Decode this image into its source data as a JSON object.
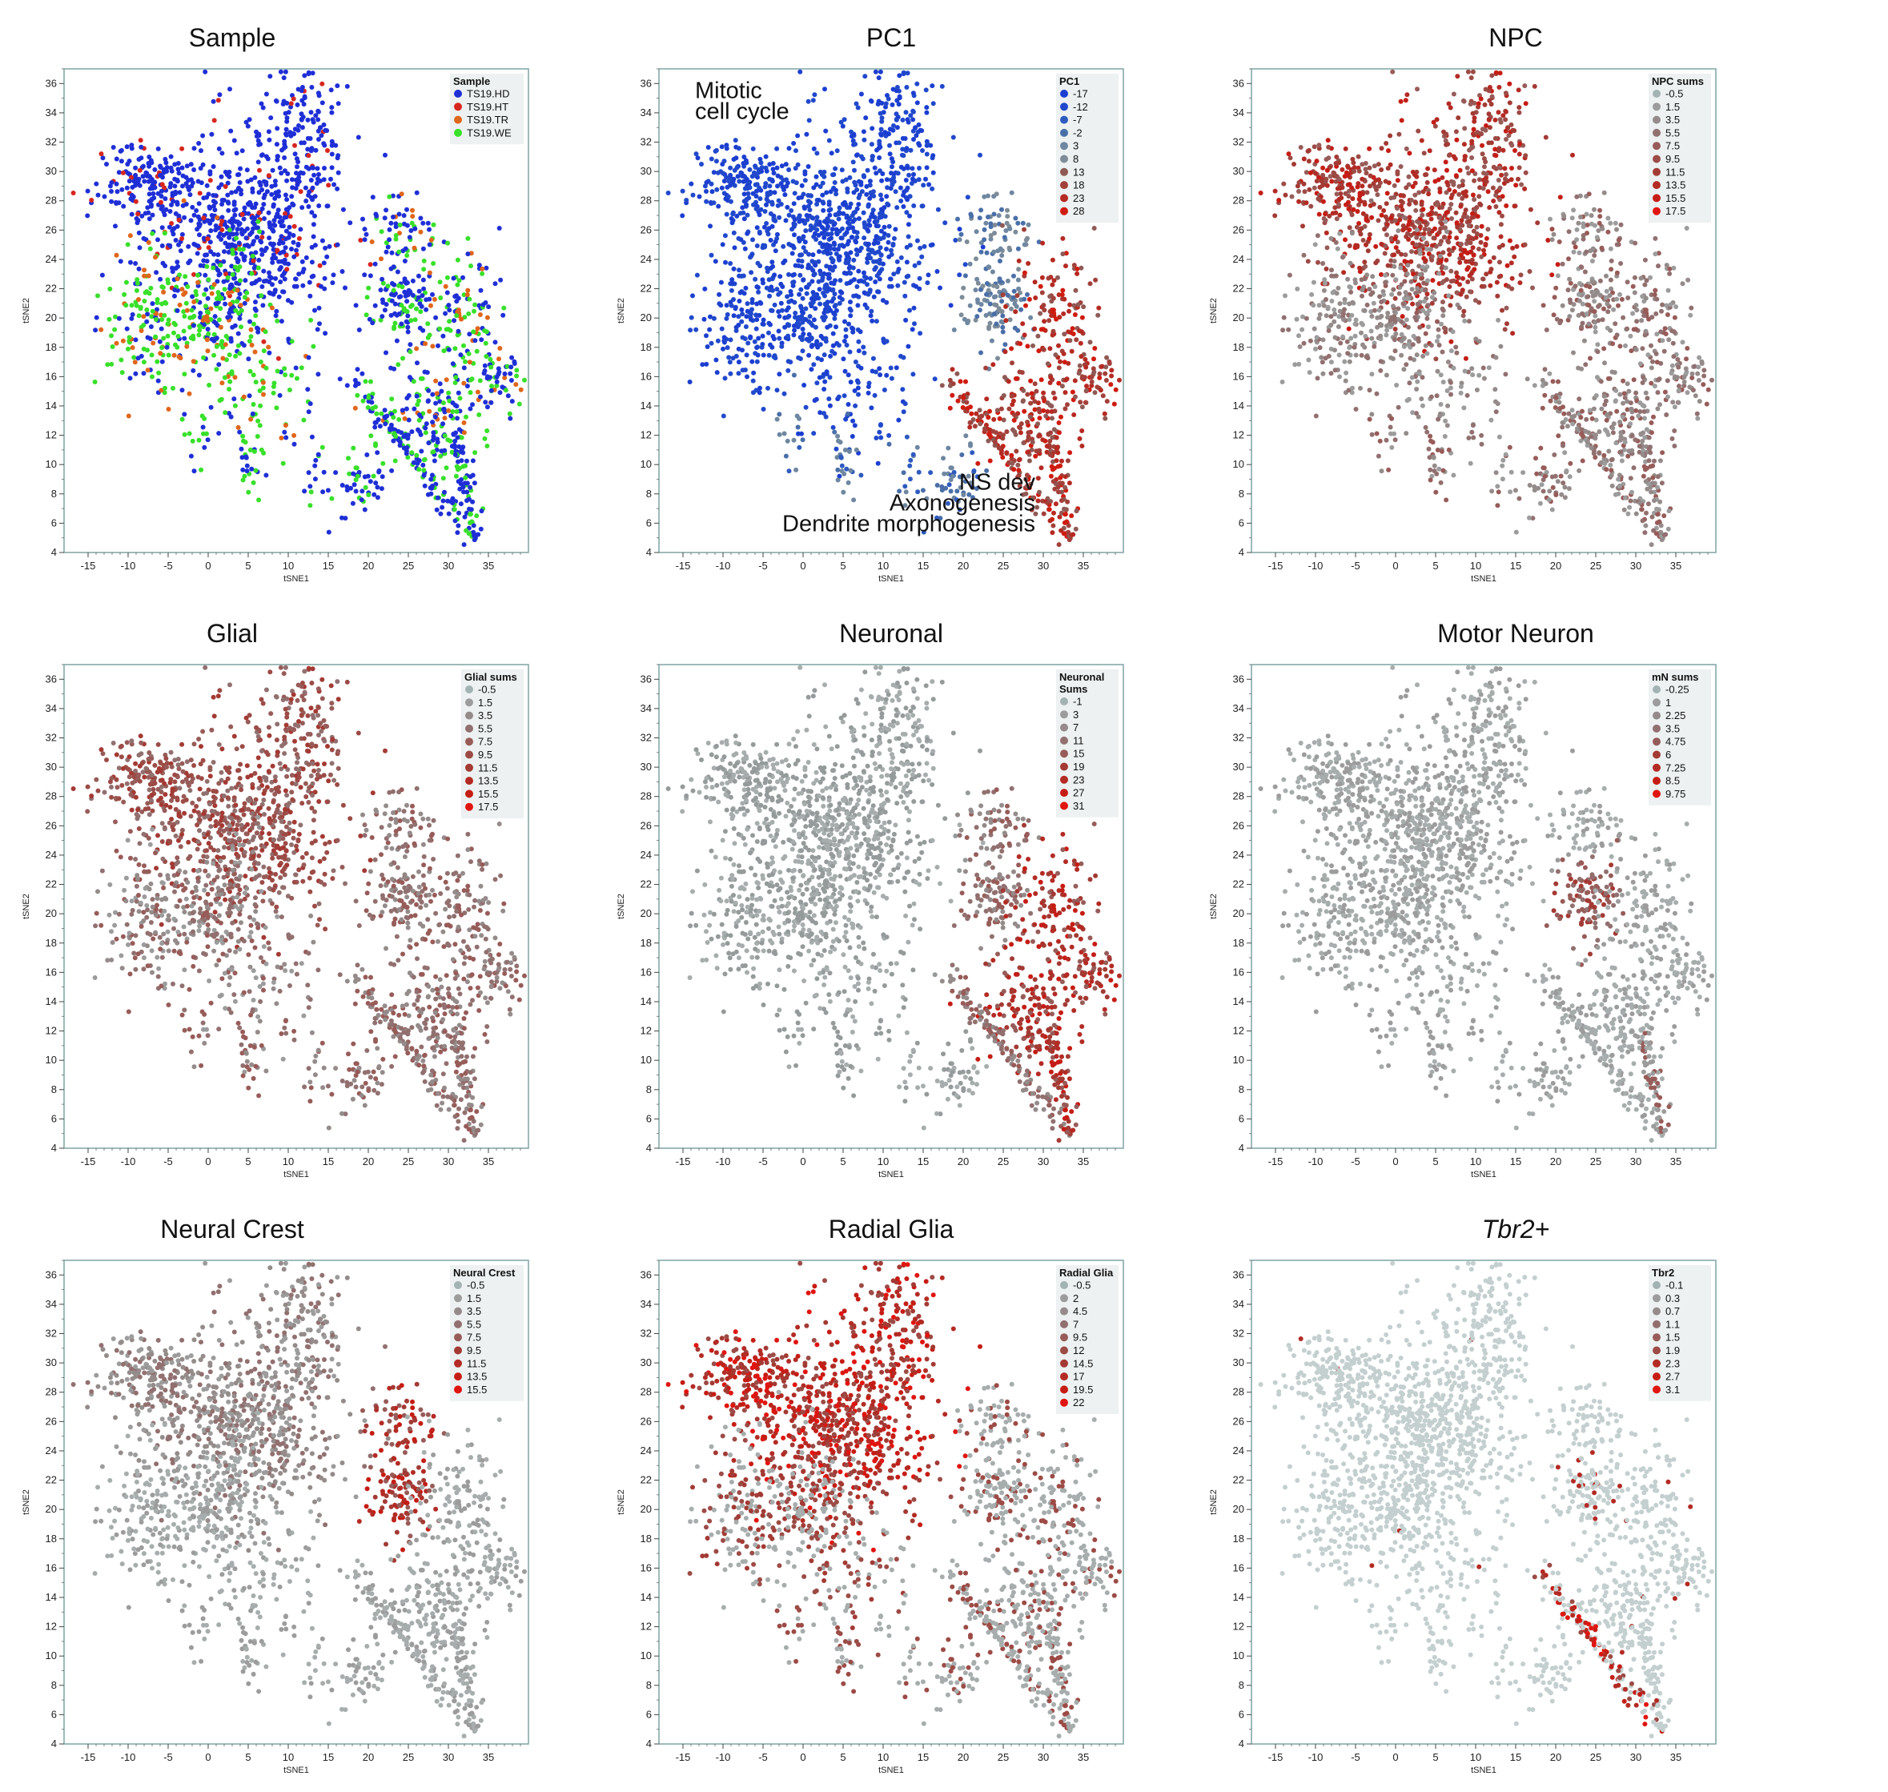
{
  "chart_data": [
    {
      "type": "scatter",
      "title": "Sample",
      "xlabel": "tSNE1",
      "ylabel": "tSNE2",
      "xlim": [
        -18,
        40
      ],
      "ylim": [
        4,
        37
      ],
      "xticks": [
        -15,
        -10,
        -5,
        0,
        5,
        10,
        15,
        20,
        25,
        30,
        35
      ],
      "yticks": [
        4,
        6,
        8,
        10,
        12,
        14,
        16,
        18,
        20,
        22,
        24,
        26,
        28,
        30,
        32,
        34,
        36
      ],
      "color_mode": "categorical",
      "legend": {
        "title": "Sample",
        "placement": "top-right",
        "entries": [
          {
            "label": "TS19.HD",
            "color": "#1f2fd6"
          },
          {
            "label": "TS19.HT",
            "color": "#d7261e"
          },
          {
            "label": "TS19.TR",
            "color": "#e0661a"
          },
          {
            "label": "TS19.WE",
            "color": "#38e02a"
          }
        ]
      }
    },
    {
      "type": "scatter",
      "title": "PC1",
      "xlabel": "tSNE1",
      "ylabel": "tSNE2",
      "xlim": [
        -18,
        40
      ],
      "ylim": [
        4,
        37
      ],
      "xticks": [
        -15,
        -10,
        -5,
        0,
        5,
        10,
        15,
        20,
        25,
        30,
        35
      ],
      "yticks": [
        4,
        6,
        8,
        10,
        12,
        14,
        16,
        18,
        20,
        22,
        24,
        26,
        28,
        30,
        32,
        34,
        36
      ],
      "color_mode": "pc1",
      "annotations": [
        {
          "lines": [
            "Mitotic",
            "cell cycle"
          ],
          "x": -13.5,
          "y": 35.0,
          "anchor": "start"
        },
        {
          "lines": [
            "NS dev",
            "Axonogenesis",
            "Dendrite morphogenesis"
          ],
          "x": 29,
          "y": 8.3,
          "anchor": "end"
        }
      ],
      "legend": {
        "title": "PC1",
        "placement": "top-right",
        "entries": [
          {
            "label": "-17",
            "color": "#1c3fd0"
          },
          {
            "label": "-12",
            "color": "#2149cc"
          },
          {
            "label": "-7",
            "color": "#2f5bbf"
          },
          {
            "label": "-2",
            "color": "#4a6fa8"
          },
          {
            "label": "3",
            "color": "#6f87a0"
          },
          {
            "label": "8",
            "color": "#7e8c98"
          },
          {
            "label": "13",
            "color": "#8f5a55"
          },
          {
            "label": "18",
            "color": "#a2403a"
          },
          {
            "label": "23",
            "color": "#b52a22"
          },
          {
            "label": "28",
            "color": "#cf1c10"
          }
        ]
      }
    },
    {
      "type": "scatter",
      "title": "NPC",
      "xlabel": "tSNE1",
      "ylabel": "tSNE2",
      "xlim": [
        -18,
        40
      ],
      "ylim": [
        4,
        37
      ],
      "xticks": [
        -15,
        -10,
        -5,
        0,
        5,
        10,
        15,
        20,
        25,
        30,
        35
      ],
      "yticks": [
        4,
        6,
        8,
        10,
        12,
        14,
        16,
        18,
        20,
        22,
        24,
        26,
        28,
        30,
        32,
        34,
        36
      ],
      "color_mode": "npc",
      "legend": {
        "title": "NPC sums",
        "placement": "top-right",
        "entries": [
          {
            "label": "-0.5",
            "color": "#a3b3b3"
          },
          {
            "label": "1.5",
            "color": "#9c9c9c"
          },
          {
            "label": "3.5",
            "color": "#958b8b"
          },
          {
            "label": "5.5",
            "color": "#927070"
          },
          {
            "label": "7.5",
            "color": "#975c59"
          },
          {
            "label": "9.5",
            "color": "#9c4b46"
          },
          {
            "label": "11.5",
            "color": "#a33a34"
          },
          {
            "label": "13.5",
            "color": "#b32b24"
          },
          {
            "label": "15.5",
            "color": "#c51d15"
          },
          {
            "label": "17.5",
            "color": "#e01510"
          }
        ]
      }
    },
    {
      "type": "scatter",
      "title": "Glial",
      "xlabel": "tSNE1",
      "ylabel": "tSNE2",
      "xlim": [
        -18,
        40
      ],
      "ylim": [
        4,
        37
      ],
      "xticks": [
        -15,
        -10,
        -5,
        0,
        5,
        10,
        15,
        20,
        25,
        30,
        35
      ],
      "yticks": [
        4,
        6,
        8,
        10,
        12,
        14,
        16,
        18,
        20,
        22,
        24,
        26,
        28,
        30,
        32,
        34,
        36
      ],
      "color_mode": "glial",
      "legend": {
        "title": "Glial sums",
        "placement": "top-right",
        "entries": [
          {
            "label": "-0.5",
            "color": "#a3b3b3"
          },
          {
            "label": "1.5",
            "color": "#9c9c9c"
          },
          {
            "label": "3.5",
            "color": "#958b8b"
          },
          {
            "label": "5.5",
            "color": "#927070"
          },
          {
            "label": "7.5",
            "color": "#975c59"
          },
          {
            "label": "9.5",
            "color": "#9c4b46"
          },
          {
            "label": "11.5",
            "color": "#a33a34"
          },
          {
            "label": "13.5",
            "color": "#b32b24"
          },
          {
            "label": "15.5",
            "color": "#c51d15"
          },
          {
            "label": "17.5",
            "color": "#e01510"
          }
        ]
      }
    },
    {
      "type": "scatter",
      "title": "Neuronal",
      "xlabel": "tSNE1",
      "ylabel": "tSNE2",
      "xlim": [
        -18,
        40
      ],
      "ylim": [
        4,
        37
      ],
      "xticks": [
        -15,
        -10,
        -5,
        0,
        5,
        10,
        15,
        20,
        25,
        30,
        35
      ],
      "yticks": [
        4,
        6,
        8,
        10,
        12,
        14,
        16,
        18,
        20,
        22,
        24,
        26,
        28,
        30,
        32,
        34,
        36
      ],
      "color_mode": "neuronal",
      "legend": {
        "title": [
          "Neuronal",
          "Sums"
        ],
        "placement": "top-right",
        "entries": [
          {
            "label": "-1",
            "color": "#a3b3b3"
          },
          {
            "label": "3",
            "color": "#9c9c9c"
          },
          {
            "label": "7",
            "color": "#958b8b"
          },
          {
            "label": "11",
            "color": "#927070"
          },
          {
            "label": "15",
            "color": "#975c59"
          },
          {
            "label": "19",
            "color": "#a33a34"
          },
          {
            "label": "23",
            "color": "#b32b24"
          },
          {
            "label": "27",
            "color": "#c51d15"
          },
          {
            "label": "31",
            "color": "#e01510"
          }
        ]
      }
    },
    {
      "type": "scatter",
      "title": "Motor Neuron",
      "xlabel": "tSNE1",
      "ylabel": "tSNE2",
      "xlim": [
        -18,
        40
      ],
      "ylim": [
        4,
        37
      ],
      "xticks": [
        -15,
        -10,
        -5,
        0,
        5,
        10,
        15,
        20,
        25,
        30,
        35
      ],
      "yticks": [
        4,
        6,
        8,
        10,
        12,
        14,
        16,
        18,
        20,
        22,
        24,
        26,
        28,
        30,
        32,
        34,
        36
      ],
      "color_mode": "motor",
      "legend": {
        "title": "mN sums",
        "placement": "top-right",
        "entries": [
          {
            "label": "-0.25",
            "color": "#a3b3b3"
          },
          {
            "label": "1",
            "color": "#9c9c9c"
          },
          {
            "label": "2.25",
            "color": "#958b8b"
          },
          {
            "label": "3.5",
            "color": "#927070"
          },
          {
            "label": "4.75",
            "color": "#975c59"
          },
          {
            "label": "6",
            "color": "#a33a34"
          },
          {
            "label": "7.25",
            "color": "#b32b24"
          },
          {
            "label": "8.5",
            "color": "#c51d15"
          },
          {
            "label": "9.75",
            "color": "#e01510"
          }
        ]
      }
    },
    {
      "type": "scatter",
      "title": "Neural Crest",
      "xlabel": "tSNE1",
      "ylabel": "tSNE2",
      "xlim": [
        -18,
        40
      ],
      "ylim": [
        4,
        37
      ],
      "xticks": [
        -15,
        -10,
        -5,
        0,
        5,
        10,
        15,
        20,
        25,
        30,
        35
      ],
      "yticks": [
        4,
        6,
        8,
        10,
        12,
        14,
        16,
        18,
        20,
        22,
        24,
        26,
        28,
        30,
        32,
        34,
        36
      ],
      "color_mode": "crest",
      "legend": {
        "title": "Neural Crest",
        "placement": "top-right",
        "entries": [
          {
            "label": "-0.5",
            "color": "#a3b3b3"
          },
          {
            "label": "1.5",
            "color": "#9c9c9c"
          },
          {
            "label": "3.5",
            "color": "#958b8b"
          },
          {
            "label": "5.5",
            "color": "#927070"
          },
          {
            "label": "7.5",
            "color": "#975c59"
          },
          {
            "label": "9.5",
            "color": "#a33a34"
          },
          {
            "label": "11.5",
            "color": "#b32b24"
          },
          {
            "label": "13.5",
            "color": "#c51d15"
          },
          {
            "label": "15.5",
            "color": "#e01510"
          }
        ]
      }
    },
    {
      "type": "scatter",
      "title": "Radial Glia",
      "xlabel": "tSNE1",
      "ylabel": "tSNE2",
      "xlim": [
        -18,
        40
      ],
      "ylim": [
        4,
        37
      ],
      "xticks": [
        -15,
        -10,
        -5,
        0,
        5,
        10,
        15,
        20,
        25,
        30,
        35
      ],
      "yticks": [
        4,
        6,
        8,
        10,
        12,
        14,
        16,
        18,
        20,
        22,
        24,
        26,
        28,
        30,
        32,
        34,
        36
      ],
      "color_mode": "radial",
      "legend": {
        "title": "Radial Glia",
        "placement": "top-right",
        "entries": [
          {
            "label": "-0.5",
            "color": "#a3b3b3"
          },
          {
            "label": "2",
            "color": "#9c9c9c"
          },
          {
            "label": "4.5",
            "color": "#958b8b"
          },
          {
            "label": "7",
            "color": "#927070"
          },
          {
            "label": "9.5",
            "color": "#975c59"
          },
          {
            "label": "12",
            "color": "#9c4b46"
          },
          {
            "label": "14.5",
            "color": "#a33a34"
          },
          {
            "label": "17",
            "color": "#b32b24"
          },
          {
            "label": "19.5",
            "color": "#c51d15"
          },
          {
            "label": "22",
            "color": "#e01510"
          }
        ]
      }
    },
    {
      "type": "scatter",
      "title": "Tbr2+",
      "title_italic": true,
      "xlabel": "tSNE1",
      "ylabel": "tSNE2",
      "xlim": [
        -18,
        40
      ],
      "ylim": [
        4,
        37
      ],
      "xticks": [
        -15,
        -10,
        -5,
        0,
        5,
        10,
        15,
        20,
        25,
        30,
        35
      ],
      "yticks": [
        4,
        6,
        8,
        10,
        12,
        14,
        16,
        18,
        20,
        22,
        24,
        26,
        28,
        30,
        32,
        34,
        36
      ],
      "color_mode": "tbr2",
      "legend": {
        "title": "Tbr2",
        "placement": "top-right",
        "entries": [
          {
            "label": "-0.1",
            "color": "#a3b3b3"
          },
          {
            "label": "0.3",
            "color": "#9c9c9c"
          },
          {
            "label": "0.7",
            "color": "#958b8b"
          },
          {
            "label": "1.1",
            "color": "#927070"
          },
          {
            "label": "1.5",
            "color": "#975c59"
          },
          {
            "label": "1.9",
            "color": "#9c4b46"
          },
          {
            "label": "2.3",
            "color": "#b32b24"
          },
          {
            "label": "2.7",
            "color": "#c51d15"
          },
          {
            "label": "3.1",
            "color": "#e01510"
          }
        ]
      }
    }
  ],
  "colors": {
    "frame": "#7fa3a3",
    "legend_bg": "#edf1f1",
    "grey_low": "#a7adad",
    "grey_mid": "#959a9a",
    "tbr2_base": "#c4cfcf"
  }
}
